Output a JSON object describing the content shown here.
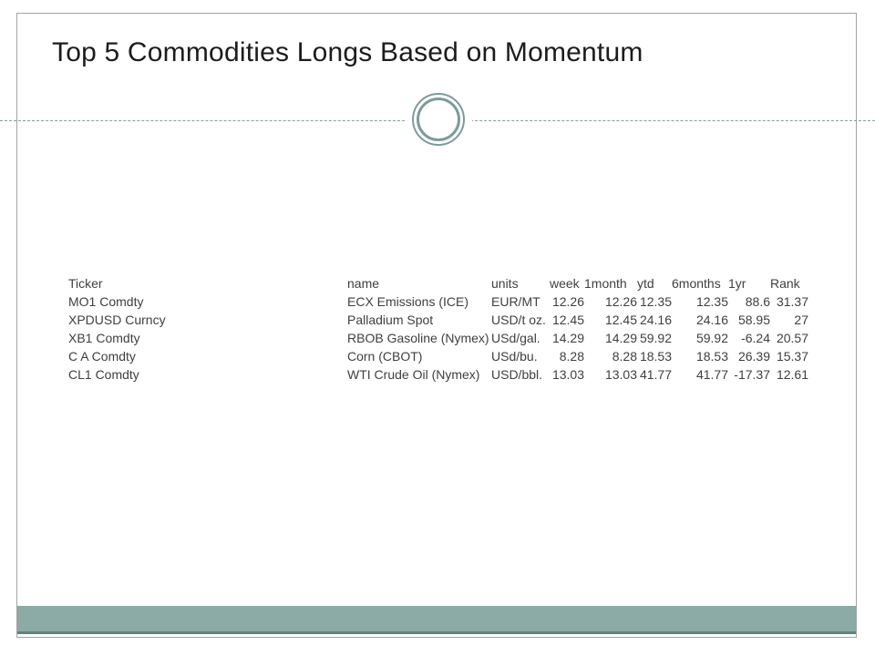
{
  "slide": {
    "title": "Top 5 Commodities Longs Based on Momentum"
  },
  "table": {
    "columns": [
      {
        "label": "Ticker",
        "align": "left"
      },
      {
        "label": "name",
        "align": "left"
      },
      {
        "label": "units",
        "align": "left"
      },
      {
        "label": "week",
        "align": "right"
      },
      {
        "label": "1month",
        "align": "right"
      },
      {
        "label": "ytd",
        "align": "right"
      },
      {
        "label": "6months",
        "align": "right"
      },
      {
        "label": "1yr",
        "align": "right"
      },
      {
        "label": "Rank",
        "align": "right"
      }
    ],
    "rows": [
      [
        "MO1 Comdty",
        "ECX Emissions (ICE)",
        "EUR/MT",
        "12.26",
        "12.26",
        "12.35",
        "12.35",
        "88.6",
        "31.37"
      ],
      [
        "XPDUSD Curncy",
        "Palladium Spot",
        "USD/t oz.",
        "12.45",
        "12.45",
        "24.16",
        "24.16",
        "58.95",
        "27"
      ],
      [
        "XB1 Comdty",
        "RBOB Gasoline (Nymex)",
        "USd/gal.",
        "14.29",
        "14.29",
        "59.92",
        "59.92",
        "-6.24",
        "20.57"
      ],
      [
        "C A Comdty",
        "Corn (CBOT)",
        "USd/bu.",
        "8.28",
        "8.28",
        "18.53",
        "18.53",
        "26.39",
        "15.37"
      ],
      [
        "CL1 Comdty",
        "WTI Crude Oil (Nymex)",
        "USD/bbl.",
        "13.03",
        "13.03",
        "41.77",
        "41.77",
        "-17.37",
        "12.61"
      ]
    ]
  },
  "theme": {
    "accent_band": "#8caaa6",
    "accent_band_edge": "#5f837f",
    "ring_color": "#7d9b99",
    "dash_color": "#85a09e",
    "slide_border": "#a3a3a3",
    "title_color": "#1c1c1c",
    "table_text": "#3f3f3f"
  }
}
